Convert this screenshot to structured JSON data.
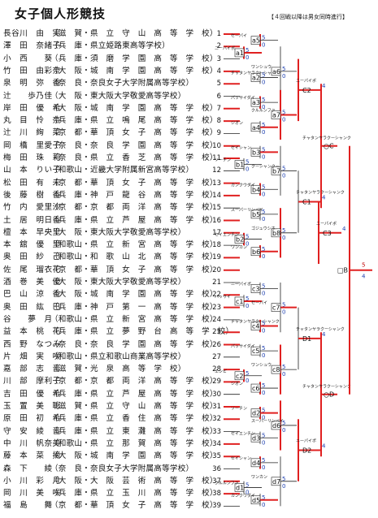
{
  "title": "女子個人形競技",
  "note": "【４回戦以降は男女同時進行】",
  "entries": [
    {
      "no": "1",
      "name": "長谷川　由　実",
      "aff": "（滋　賀・県　立　守　山　高　等　学　校）"
    },
    {
      "no": "2",
      "name": "澤　田　奈緒子",
      "aff": "（兵　庫・県立姫路東高等学校）"
    },
    {
      "no": "3",
      "name": "小　西　　葵",
      "aff": "（兵　庫・須　磨　学　園　高　等　学　校）"
    },
    {
      "no": "4",
      "name": "竹　田　由彩奈",
      "aff": "（大　阪・城　南　学　園　高　等　学　校）"
    },
    {
      "no": "5",
      "name": "泉　明　弥　香",
      "aff": "（奈　良・奈良女子大学附属高等学校）"
    },
    {
      "no": "6",
      "name": "辻　　歩乃佳",
      "aff": "（大　阪・東大阪大学敬愛高等学校）"
    },
    {
      "no": "7",
      "name": "岸　田　優　希",
      "aff": "（大　阪・城　南　学　園　高　等　学　校）"
    },
    {
      "no": "8",
      "name": "丸　目　怜　奈",
      "aff": "（兵　庫・県　立　鳴　尾　高　等　学　校）"
    },
    {
      "no": "9",
      "name": "辻　川　絢　菜",
      "aff": "（京　都・華　頂　女　子　高　等　学　校）"
    },
    {
      "no": "10",
      "name": "岡　橋　里愛子",
      "aff": "（奈　良・奈　良　学　園　高　等　学　校）"
    },
    {
      "no": "11",
      "name": "梅　田　珠　莉",
      "aff": "（奈　良・県　立　香　芝　高　等　学　校）"
    },
    {
      "no": "12",
      "name": "山　本　りい子",
      "aff": "（和歌山・近畿大学附属新宮高等学校）"
    },
    {
      "no": "13",
      "name": "松　田　有　未",
      "aff": "（京　都・華　頂　女　子　高　等　学　校）"
    },
    {
      "no": "14",
      "name": "後　藤　樹　香",
      "aff": "（兵　庫・神　戸　龍　谷　高　等　学　校）"
    },
    {
      "no": "15",
      "name": "竹　内　愛里沙",
      "aff": "（京　都・京　都　両　洋　高　等　学　校）"
    },
    {
      "no": "16",
      "name": "土　居　明日香",
      "aff": "（兵　庫・県　立　芦　屋　高　等　学　校）"
    },
    {
      "no": "17",
      "name": "檀　本　早央里",
      "aff": "（大　阪・東大阪大学敬愛高等学校）"
    },
    {
      "no": "18",
      "name": "本　舘　優　里",
      "aff": "（和歌山・県　立　新　宮　高　等　学　校）"
    },
    {
      "no": "19",
      "name": "奥　田　紗　己",
      "aff": "（和歌山・和　歌　山　北　高　等　学　校）"
    },
    {
      "no": "20",
      "name": "佐　尾　瑠衣花",
      "aff": "（京　都・華　頂　女　子　高　等　学　校）"
    },
    {
      "no": "21",
      "name": "酒　巻　美　優",
      "aff": "（大　阪・東大阪大学敬愛高等学校）"
    },
    {
      "no": "22",
      "name": "巴　山　涼　香",
      "aff": "（大　阪・城　南　学　園　高　等　学　校）"
    },
    {
      "no": "23",
      "name": "奥　田　紘　巴",
      "aff": "（兵　庫・神　戸　第　一　高　等　学　校）"
    },
    {
      "no": "24",
      "name": "谷　　夢　月",
      "aff": "（和歌山・県　立　新　宮　高　等　学　校）"
    },
    {
      "no": "25",
      "name": "益　本　桃　花",
      "aff": "（兵　庫・県　立　夢　野　台　高　等　学　校）"
    },
    {
      "no": "26",
      "name": "西　野　なつみ",
      "aff": "（奈　良・奈　良　学　園　高　等　学　校）"
    },
    {
      "no": "27",
      "name": "片　畑　実　咲",
      "aff": "（和歌山・県立和歌山商業高等学校）"
    },
    {
      "no": "28",
      "name": "嘉　部　志　音",
      "aff": "（滋　賀・光　泉　高　等　学　校）"
    },
    {
      "no": "29",
      "name": "川　部　摩利子",
      "aff": "（京　都・京　都　両　洋　高　等　学　校）"
    },
    {
      "no": "30",
      "name": "吉　田　優　希",
      "aff": "（兵　庫・県　立　芦　屋　高　等　学　校）"
    },
    {
      "no": "31",
      "name": "玉　置　美　聡",
      "aff": "（滋　賀・県　立　守　山　高　等　学　校）"
    },
    {
      "no": "32",
      "name": "原　田　初　希",
      "aff": "（兵　庫・県　立　香　住　高　等　学　校）"
    },
    {
      "no": "33",
      "name": "守　安　綾　音",
      "aff": "（兵　庫・県　立　東　灘　高　等　学　校）"
    },
    {
      "no": "34",
      "name": "中　川　帆奈美",
      "aff": "（和歌山・県　立　那　賀　高　等　学　校）"
    },
    {
      "no": "35",
      "name": "藤　本　菜　摘",
      "aff": "（大　阪・城　南　学　園　高　等　学　校）"
    },
    {
      "no": "36",
      "name": "森　下　　綾",
      "aff": "（奈　良・奈良女子大学附属高等学校）"
    },
    {
      "no": "37",
      "name": "小　川　彩　月",
      "aff": "（大　阪・大　阪　芸　術　高　等　学　校）"
    },
    {
      "no": "38",
      "name": "岡　川　美　咲",
      "aff": "（兵　庫・県　立　玉　川　高　等　学　校）"
    },
    {
      "no": "39",
      "name": "福　島　　舞",
      "aff": "（京　都・華　頂　女　子　高　等　学　校）"
    }
  ],
  "matches": [
    {
      "id": "a1",
      "row": 2.5
    },
    {
      "id": "a2",
      "row": 4.5
    },
    {
      "id": "a3",
      "row": 6.5
    },
    {
      "id": "a4",
      "row": 8.5
    },
    {
      "id": "a5",
      "row": 1.5
    },
    {
      "id": "a6",
      "row": 4
    },
    {
      "id": "a7",
      "row": 7.5
    },
    {
      "id": "b1",
      "row": 11.5
    },
    {
      "id": "b2",
      "row": 17.5
    },
    {
      "id": "b3",
      "row": 10.5
    },
    {
      "id": "b4",
      "row": 13.5
    },
    {
      "id": "b5",
      "row": 15.5
    },
    {
      "id": "b6",
      "row": 18.5
    },
    {
      "id": "b7",
      "row": 12
    },
    {
      "id": "b8",
      "row": 17
    },
    {
      "id": "c1",
      "row": 22.5
    },
    {
      "id": "c2",
      "row": 28.5
    },
    {
      "id": "c3",
      "row": 21.5
    },
    {
      "id": "c4",
      "row": 24.5
    },
    {
      "id": "c5",
      "row": 26.5
    },
    {
      "id": "c6",
      "row": 29.5
    },
    {
      "id": "c7",
      "row": 23
    },
    {
      "id": "c8",
      "row": 28
    },
    {
      "id": "d1",
      "row": 37.5
    },
    {
      "id": "d2",
      "row": 31.5
    },
    {
      "id": "d3",
      "row": 33.5
    },
    {
      "id": "d4",
      "row": 35.5
    },
    {
      "id": "d5",
      "row": 38.5
    },
    {
      "id": "d6",
      "row": 32.5
    },
    {
      "id": "d7",
      "row": 37
    }
  ],
  "quarter_labels": [
    {
      "id": "C2",
      "row": 5.5
    },
    {
      "id": "C1",
      "row": 14.5
    },
    {
      "id": "C3",
      "row": 17
    },
    {
      "id": "D1",
      "row": 25.5
    },
    {
      "id": "D2",
      "row": 34.5
    }
  ],
  "semi_labels": [
    {
      "id": "○C",
      "row": 10
    },
    {
      "id": "○D",
      "row": 30
    }
  ],
  "final_label": {
    "id": "□B",
    "row": 20
  },
  "winner_scores": [
    "5",
    "4"
  ],
  "katas": [
    "ニーパイポ",
    "チャタンヤラクーシャンク",
    "パッサイダイ",
    "ジオン",
    "セーパイ",
    "ワンシュウ",
    "クルルンファ",
    "ソーチン",
    "セイエンチン",
    "セイシャン",
    "カンクウダイ",
    "スーパーリンペイ",
    "ワンカン",
    "クーシャンクー",
    "ゴジュウシホ",
    "バッサイ",
    "エンピ"
  ]
}
